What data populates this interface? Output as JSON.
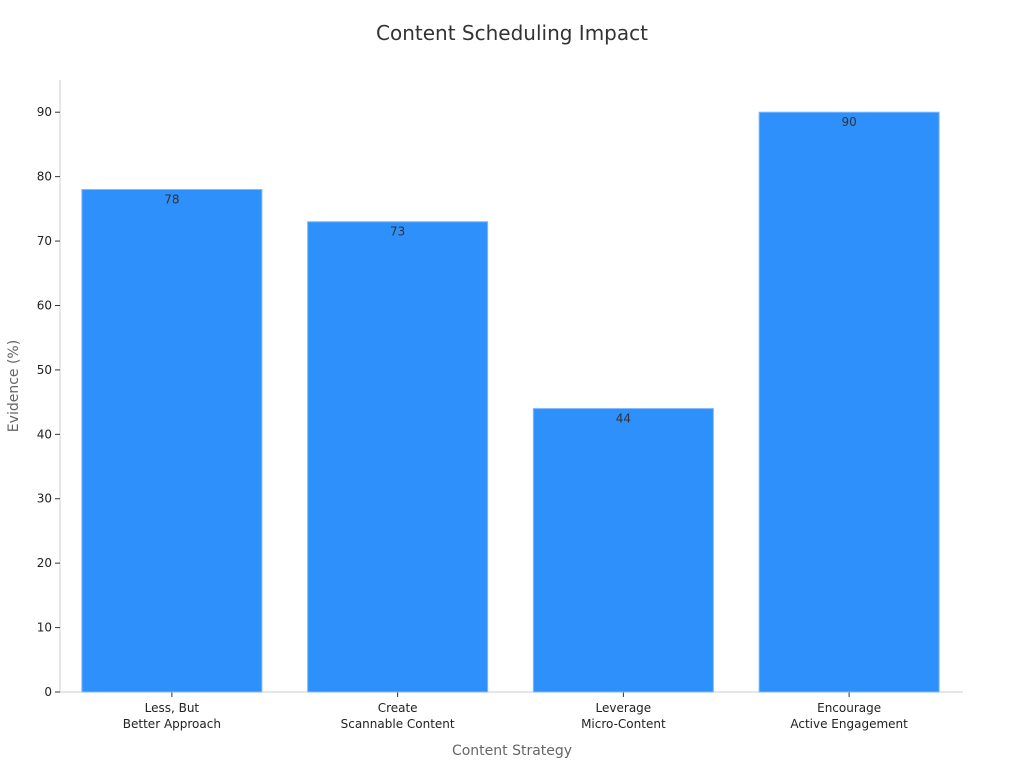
{
  "chart_data": {
    "type": "bar",
    "title": "Content Scheduling Impact",
    "xlabel": "Content Strategy",
    "ylabel": "Evidence (%)",
    "categories": [
      [
        "Less, But",
        "Better Approach"
      ],
      [
        "Create",
        "Scannable Content"
      ],
      [
        "Leverage",
        "Micro-Content"
      ],
      [
        "Encourage",
        "Active Engagement"
      ]
    ],
    "values": [
      78,
      73,
      44,
      90
    ],
    "data_labels": [
      "78",
      "73",
      "44",
      "90"
    ],
    "ylim": [
      0,
      95
    ],
    "yticks": [
      0,
      10,
      20,
      30,
      40,
      50,
      60,
      70,
      80,
      90
    ],
    "ytick_labels": [
      "0",
      "10",
      "20",
      "30",
      "40",
      "50",
      "60",
      "70",
      "80",
      "90"
    ],
    "grid": false,
    "legend": "none",
    "bar_color": "#2e90fa"
  }
}
